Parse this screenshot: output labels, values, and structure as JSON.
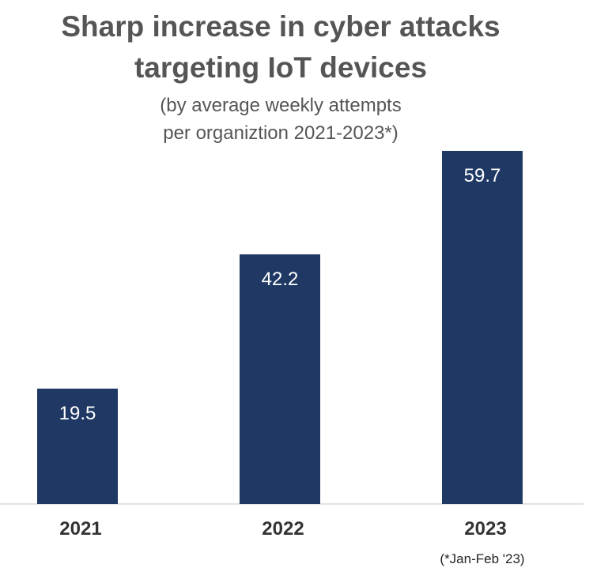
{
  "chart_data": {
    "type": "bar",
    "title": [
      "Sharp increase in cyber attacks",
      "targeting IoT devices"
    ],
    "subtitle": [
      "(by average weekly attempts",
      "per organiztion 2021-2023*)"
    ],
    "categories": [
      "2021",
      "2022",
      "2023"
    ],
    "values": [
      19.5,
      42.2,
      59.7
    ],
    "value_labels": [
      "19.5",
      "42.2",
      "59.7"
    ],
    "footnote": "(*Jan-Feb '23)",
    "xlabel": "",
    "ylabel": "",
    "ylim": [
      0,
      59.7
    ],
    "grid": false,
    "legend": "none",
    "colors": {
      "bar": "#1f3864",
      "bar_label": "#ffffff",
      "axis_line": "#d9d9d9",
      "tick_label": "#333333",
      "title": "#555555"
    }
  }
}
